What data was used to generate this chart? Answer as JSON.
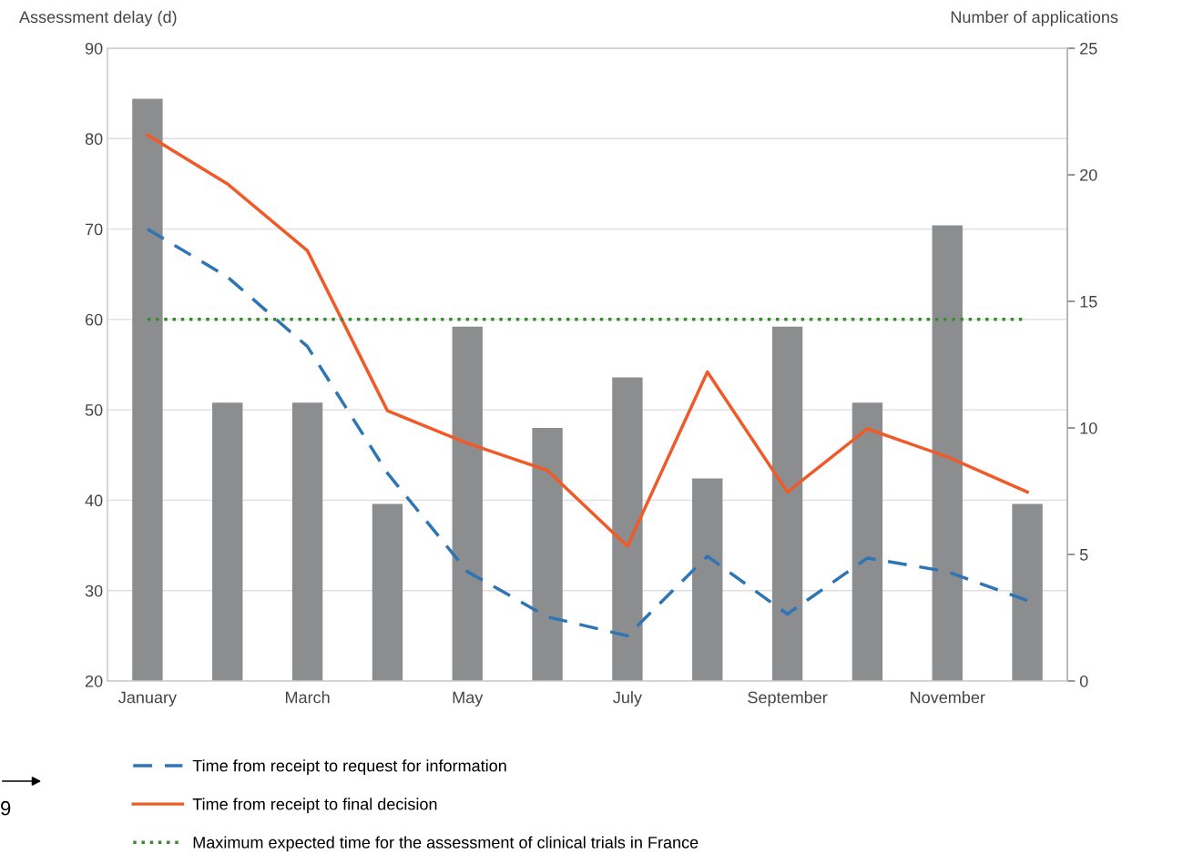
{
  "chart_data": {
    "type": "line",
    "ylabel": "Assessment delay (d)",
    "y2label": "Number of applications",
    "categories": [
      "January",
      null,
      "March",
      null,
      "May",
      null,
      "July",
      null,
      "September",
      null,
      "November",
      null
    ],
    "series": [
      {
        "type": "bar",
        "axis": "y2",
        "color": "#8c8d8f",
        "values": [
          23,
          11,
          11,
          7,
          14,
          10,
          12,
          8,
          14,
          11,
          18,
          7
        ]
      },
      {
        "name": "Time from receipt to request for information",
        "color": "#2e75b6",
        "line_style": "dashed",
        "values": [
          70,
          64.7,
          57,
          43,
          32.1,
          27.1,
          25,
          33.8,
          27.4,
          33.6,
          32.1,
          28.9
        ]
      },
      {
        "name": "Time from receipt to final decision",
        "color": "#f05a28",
        "line_style": "solid",
        "values": [
          80.4,
          75,
          67.6,
          49.9,
          46.3,
          43.3,
          34.9,
          54.2,
          40.9,
          47.9,
          44.8,
          40.9
        ]
      }
    ],
    "ref_lines": [
      {
        "axis": "y",
        "value": 60,
        "label": "Maximum expected time for the assessment of clinical trials in France",
        "color": "#3a8a2e",
        "line_style": "dotted"
      }
    ],
    "ylim": [
      20,
      90
    ],
    "yticks": [
      20,
      30,
      40,
      50,
      60,
      70,
      80,
      90
    ],
    "y2lim": [
      0,
      25
    ],
    "y2ticks": [
      0,
      5,
      10,
      15,
      20,
      25
    ],
    "grid": "y",
    "legend": "bottom",
    "marker": "none",
    "annotations": [
      "9"
    ]
  }
}
